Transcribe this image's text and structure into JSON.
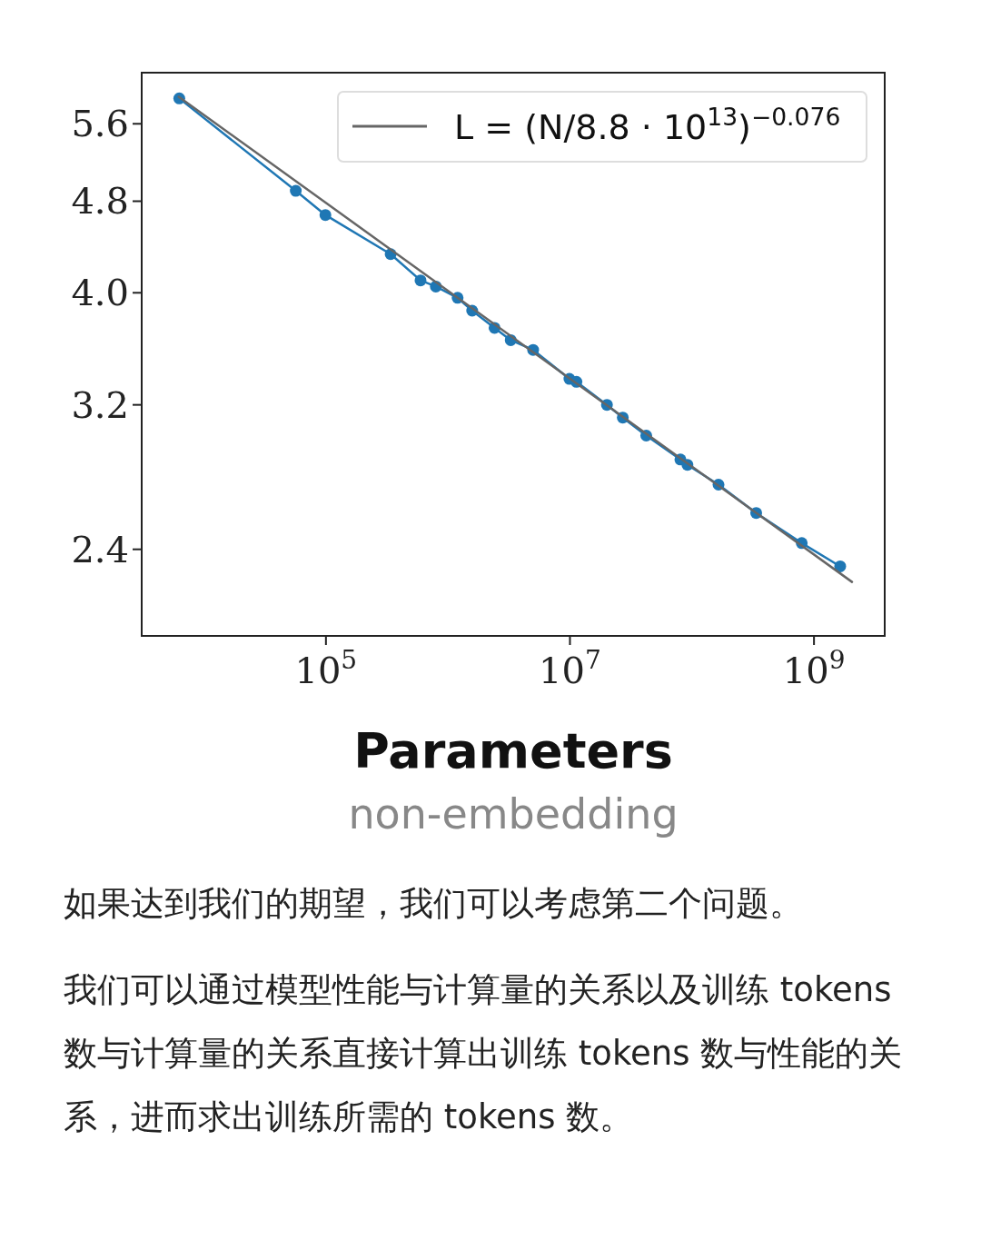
{
  "chart_data": {
    "type": "line",
    "xlabel": "Parameters",
    "annotations": [
      "non-embedding",
      "如果达到我们的期望，我们可以考虑第二个问题。",
      "我们可以通过模型性能与计算量的关系以及训练 tokens 数与计算量的关系直接计算出训练 tokens 数与性能的关系，进而求出训练所需的 tokens 数。"
    ],
    "log": "xy",
    "xlim": [
      3090,
      3800000000
    ],
    "ylim": [
      2.02,
      6.2
    ],
    "xticks": [
      {
        "value": 100000,
        "label": "10$^{5}$"
      },
      {
        "value": 10000000,
        "label": "10$^{7}$"
      },
      {
        "value": 1000000000,
        "label": "10$^{9}$"
      }
    ],
    "yticks": [
      2.4,
      3.2,
      {
        "value": 4,
        "label": "4.0"
      },
      4.8,
      5.6
    ],
    "marker": "circle",
    "legend": "top right",
    "series": [
      {
        "color": "#1f77b4",
        "x": [
          6280,
          56600,
          99000,
          339000,
          596000,
          796000,
          1200000,
          1580000,
          2410000,
          3270000,
          4990000,
          9900000,
          11300000,
          20100000,
          27100000,
          42200000,
          80400000,
          91800000,
          165000000,
          336000000,
          794000000,
          1640000000
        ],
        "values": [
          5.89,
          4.9,
          4.67,
          4.32,
          4.1,
          4.05,
          3.96,
          3.86,
          3.73,
          3.64,
          3.57,
          3.37,
          3.35,
          3.2,
          3.12,
          3.01,
          2.87,
          2.84,
          2.73,
          2.58,
          2.43,
          2.32
        ]
      },
      {
        "type": "line",
        "name": "L = (N/8.8 · 10$^{13}$)$^{−0.076}$",
        "color": "#666666",
        "marker": "none",
        "x": [
          6210,
          2050000000
        ],
        "values": [
          5.91,
          2.249
        ]
      }
    ]
  }
}
